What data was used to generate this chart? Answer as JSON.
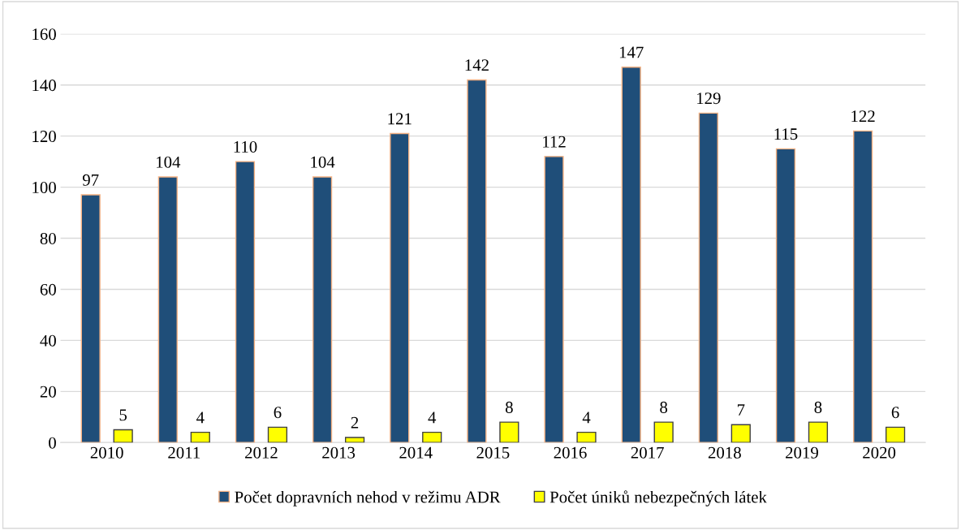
{
  "chart_data": {
    "type": "bar",
    "categories": [
      "2010",
      "2011",
      "2012",
      "2013",
      "2014",
      "2015",
      "2016",
      "2017",
      "2018",
      "2019",
      "2020"
    ],
    "series": [
      {
        "name": "Počet dopravních nehod v režimu ADR",
        "color": "#1f4e79",
        "values": [
          97,
          104,
          110,
          104,
          121,
          142,
          112,
          147,
          129,
          115,
          122
        ]
      },
      {
        "name": "Počet úniků nebezpečných látek",
        "color": "#ffff00",
        "values": [
          5,
          4,
          6,
          2,
          4,
          8,
          4,
          8,
          7,
          8,
          6
        ]
      }
    ],
    "ylim": [
      0,
      160
    ],
    "yticks": [
      0,
      20,
      40,
      60,
      80,
      100,
      120,
      140,
      160
    ],
    "grid": "y",
    "legend": "bottom",
    "data_labels": true
  }
}
